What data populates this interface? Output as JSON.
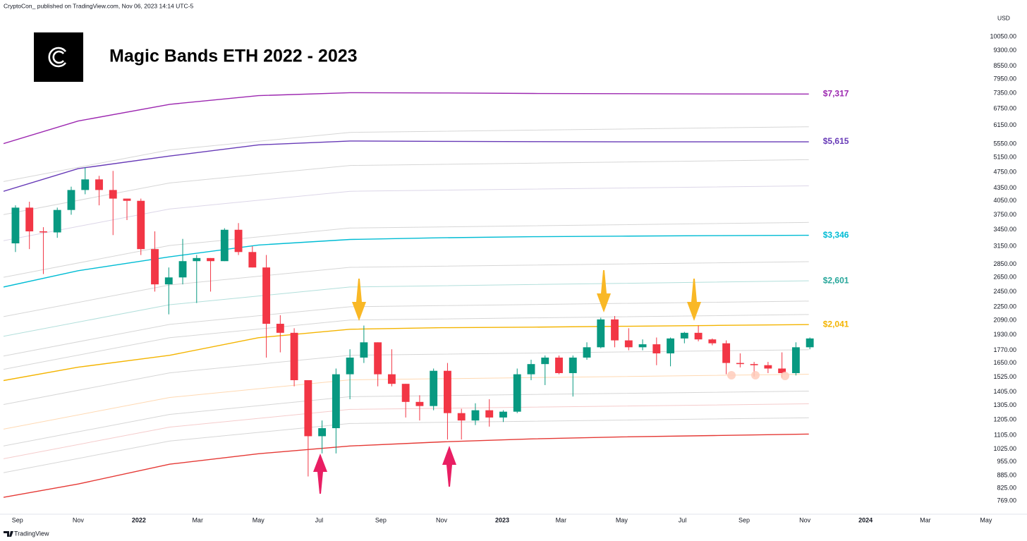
{
  "page": {
    "header": "CryptoCon_ published on TradingView.com, Nov 06, 2023 14:14 UTC-5",
    "footer": "TradingView"
  },
  "chart_data": {
    "type": "candlestick",
    "title": "Magic Bands ETH 2022 - 2023",
    "y_label": "USD",
    "log_scale": true,
    "grid": false,
    "up_color": "#089981",
    "down_color": "#f23645",
    "xlim": [
      "2021-08-18",
      "2024-05-06"
    ],
    "ylim": [
      717,
      11300
    ],
    "xticks": [
      {
        "value": "2021-09-01",
        "label": "Sep"
      },
      {
        "value": "2021-11-01",
        "label": "Nov"
      },
      {
        "value": "2022-01-01",
        "label": "2022"
      },
      {
        "value": "2022-03-01",
        "label": "Mar"
      },
      {
        "value": "2022-05-01",
        "label": "May"
      },
      {
        "value": "2022-07-01",
        "label": "Jul"
      },
      {
        "value": "2022-09-01",
        "label": "Sep"
      },
      {
        "value": "2022-11-01",
        "label": "Nov"
      },
      {
        "value": "2023-01-01",
        "label": "2023"
      },
      {
        "value": "2023-03-01",
        "label": "Mar"
      },
      {
        "value": "2023-05-01",
        "label": "May"
      },
      {
        "value": "2023-07-01",
        "label": "Jul"
      },
      {
        "value": "2023-09-01",
        "label": "Sep"
      },
      {
        "value": "2023-11-01",
        "label": "Nov"
      },
      {
        "value": "2024-01-01",
        "label": "2024"
      },
      {
        "value": "2024-03-01",
        "label": "Mar"
      },
      {
        "value": "2024-05-01",
        "label": "May"
      }
    ],
    "yticks": [
      {
        "value": 769,
        "label": "769.00"
      },
      {
        "value": 825,
        "label": "825.00"
      },
      {
        "value": 885,
        "label": "885.00"
      },
      {
        "value": 955,
        "label": "955.00"
      },
      {
        "value": 1025,
        "label": "1025.00"
      },
      {
        "value": 1105,
        "label": "1105.00"
      },
      {
        "value": 1205,
        "label": "1205.00"
      },
      {
        "value": 1305,
        "label": "1305.00"
      },
      {
        "value": 1405,
        "label": "1405.00"
      },
      {
        "value": 1525,
        "label": "1525.00"
      },
      {
        "value": 1650,
        "label": "1650.00"
      },
      {
        "value": 1770,
        "label": "1770.00"
      },
      {
        "value": 1930,
        "label": "1930.00"
      },
      {
        "value": 2090,
        "label": "2090.00"
      },
      {
        "value": 2250,
        "label": "2250.00"
      },
      {
        "value": 2450,
        "label": "2450.00"
      },
      {
        "value": 2650,
        "label": "2650.00"
      },
      {
        "value": 2850,
        "label": "2850.00"
      },
      {
        "value": 3150,
        "label": "3150.00"
      },
      {
        "value": 3450,
        "label": "3450.00"
      },
      {
        "value": 3750,
        "label": "3750.00"
      },
      {
        "value": 4050,
        "label": "4050.00"
      },
      {
        "value": 4350,
        "label": "4350.00"
      },
      {
        "value": 4750,
        "label": "4750.00"
      },
      {
        "value": 5150,
        "label": "5150.00"
      },
      {
        "value": 5550,
        "label": "5550.00"
      },
      {
        "value": 6150,
        "label": "6150.00"
      },
      {
        "value": 6750,
        "label": "6750.00"
      },
      {
        "value": 7350,
        "label": "7350.00"
      },
      {
        "value": 7950,
        "label": "7950.00"
      },
      {
        "value": 8550,
        "label": "8550.00"
      },
      {
        "value": 9300,
        "label": "9300.00"
      },
      {
        "value": 10050,
        "label": "10050.00"
      }
    ],
    "x": [
      "2021-08-23",
      "2021-09-06",
      "2021-09-20",
      "2021-10-04",
      "2021-10-18",
      "2021-11-01",
      "2021-11-15",
      "2021-11-29",
      "2021-12-13",
      "2021-12-27",
      "2022-01-10",
      "2022-01-24",
      "2022-02-07",
      "2022-02-21",
      "2022-03-07",
      "2022-03-21",
      "2022-04-04",
      "2022-04-18",
      "2022-05-02",
      "2022-05-16",
      "2022-05-30",
      "2022-06-13",
      "2022-06-27",
      "2022-07-11",
      "2022-07-25",
      "2022-08-08",
      "2022-08-22",
      "2022-09-05",
      "2022-09-19",
      "2022-10-03",
      "2022-10-17",
      "2022-10-31",
      "2022-11-14",
      "2022-11-28",
      "2022-12-12",
      "2022-12-26",
      "2023-01-09",
      "2023-01-23",
      "2023-02-06",
      "2023-02-20",
      "2023-03-06",
      "2023-03-20",
      "2023-04-03",
      "2023-04-17",
      "2023-05-01",
      "2023-05-15",
      "2023-05-29",
      "2023-06-12",
      "2023-06-26",
      "2023-07-10",
      "2023-07-24",
      "2023-08-07",
      "2023-08-21",
      "2023-09-04",
      "2023-09-18",
      "2023-10-02",
      "2023-10-16",
      "2023-10-30"
    ],
    "open": [
      3200,
      3900,
      3420,
      3400,
      3850,
      4300,
      4560,
      4300,
      4100,
      4050,
      3100,
      2550,
      2650,
      2900,
      2950,
      2900,
      3450,
      3050,
      2800,
      2050,
      1950,
      1500,
      1100,
      1150,
      1550,
      1700,
      1850,
      1550,
      1470,
      1330,
      1300,
      1580,
      1250,
      1200,
      1270,
      1220,
      1260,
      1550,
      1640,
      1700,
      1560,
      1700,
      1800,
      2100,
      1870,
      1800,
      1830,
      1740,
      1890,
      1950,
      1880,
      1840,
      1650,
      1640,
      1630,
      1600,
      1560,
      1800
    ],
    "high": [
      3950,
      4030,
      3500,
      3900,
      4380,
      4870,
      4650,
      4780,
      4100,
      4100,
      3420,
      2800,
      3280,
      3000,
      2950,
      3480,
      3580,
      3150,
      3000,
      2150,
      2000,
      1500,
      1200,
      1600,
      1780,
      2030,
      1850,
      1780,
      1470,
      1380,
      1600,
      1650,
      1280,
      1320,
      1350,
      1270,
      1600,
      1680,
      1720,
      1720,
      1720,
      1850,
      2120,
      2140,
      2000,
      1880,
      1900,
      1900,
      1960,
      2030,
      1890,
      1870,
      1740,
      1660,
      1660,
      1750,
      1850,
      1900
    ],
    "low": [
      3050,
      3100,
      2700,
      3300,
      3750,
      4200,
      3950,
      3350,
      3640,
      3000,
      2450,
      2160,
      2550,
      2300,
      2450,
      2900,
      3000,
      2800,
      1700,
      1750,
      1450,
      880,
      1000,
      1000,
      1350,
      1650,
      1450,
      1450,
      1220,
      1200,
      1270,
      1080,
      1080,
      1170,
      1160,
      1190,
      1250,
      1500,
      1460,
      1550,
      1370,
      1680,
      1790,
      1800,
      1770,
      1770,
      1630,
      1620,
      1840,
      1860,
      1820,
      1550,
      1610,
      1530,
      1560,
      1520,
      1540,
      1780
    ],
    "close": [
      3900,
      3420,
      3400,
      3850,
      4300,
      4560,
      4300,
      4100,
      4050,
      3100,
      2550,
      2650,
      2900,
      2950,
      2900,
      3450,
      3050,
      2800,
      2050,
      1950,
      1500,
      1100,
      1150,
      1550,
      1700,
      1850,
      1550,
      1470,
      1330,
      1300,
      1580,
      1250,
      1200,
      1270,
      1220,
      1260,
      1550,
      1640,
      1700,
      1560,
      1700,
      1800,
      2100,
      1870,
      1800,
      1830,
      1740,
      1890,
      1950,
      1880,
      1840,
      1650,
      1640,
      1630,
      1600,
      1560,
      1800,
      1890
    ],
    "bands": [
      {
        "color": "#9c27b0",
        "x": [
          "2021-08-18",
          "2021-11-01",
          "2022-02-01",
          "2022-05-01",
          "2022-08-01",
          "2022-11-01",
          "2023-02-01",
          "2023-05-01",
          "2023-08-01",
          "2023-11-05"
        ],
        "values": [
          5560,
          6300,
          6910,
          7250,
          7370,
          7360,
          7340,
          7330,
          7320,
          7317
        ],
        "end_label": "$7,317"
      },
      {
        "color": "#673ab7",
        "x": [
          "2021-08-18",
          "2021-11-01",
          "2022-02-01",
          "2022-05-01",
          "2022-08-01",
          "2022-11-01",
          "2023-02-01",
          "2023-05-01",
          "2023-08-01",
          "2023-11-05"
        ],
        "values": [
          4270,
          4840,
          5190,
          5520,
          5640,
          5630,
          5620,
          5615,
          5615,
          5615
        ],
        "end_label": "$5,615"
      },
      {
        "color": "#00bcd4",
        "x": [
          "2021-08-18",
          "2021-11-01",
          "2022-02-01",
          "2022-05-01",
          "2022-08-01",
          "2022-11-01",
          "2023-02-01",
          "2023-05-01",
          "2023-08-01",
          "2023-11-05"
        ],
        "values": [
          2513,
          2750,
          2970,
          3170,
          3270,
          3300,
          3320,
          3330,
          3340,
          3346
        ],
        "end_label": "$3,346"
      },
      {
        "color": "#f4b400",
        "x": [
          "2021-08-18",
          "2021-11-01",
          "2022-02-01",
          "2022-05-01",
          "2022-08-01",
          "2022-11-01",
          "2023-02-01",
          "2023-05-01",
          "2023-08-01",
          "2023-11-05"
        ],
        "values": [
          1497,
          1612,
          1722,
          1898,
          1989,
          2006,
          2012,
          2022,
          2031,
          2041
        ],
        "end_label": "$2,041"
      },
      {
        "color": "#e53935",
        "x": [
          "2021-08-18",
          "2021-11-01",
          "2022-02-01",
          "2022-05-01",
          "2022-08-01",
          "2022-11-01",
          "2023-02-01",
          "2023-05-01",
          "2023-08-01",
          "2023-11-05"
        ],
        "values": [
          784,
          844,
          942,
          998,
          1042,
          1066,
          1084,
          1096,
          1104,
          1113
        ]
      },
      {
        "color": "#b2dfdb",
        "x": [
          "2021-08-18",
          "2022-02-01",
          "2022-08-01",
          "2023-11-05"
        ],
        "values": [
          1913,
          2278,
          2513,
          2601
        ],
        "end_label": "$2,601",
        "label_color": "#26a69a"
      },
      {
        "color": "#d6d6d6",
        "x": [
          "2021-08-18",
          "2022-02-01",
          "2022-08-01",
          "2023-11-05"
        ],
        "values": [
          4506,
          5370,
          5915,
          6103
        ]
      },
      {
        "color": "#d6d6d6",
        "x": [
          "2021-08-18",
          "2022-02-01",
          "2022-08-01",
          "2023-11-05"
        ],
        "values": [
          3753,
          4470,
          4925,
          5085
        ]
      },
      {
        "color": "#dcd6e8",
        "x": [
          "2021-08-18",
          "2022-02-01",
          "2022-08-01",
          "2023-11-05"
        ],
        "values": [
          3248,
          3870,
          4270,
          4400
        ]
      },
      {
        "color": "#d6d6d6",
        "x": [
          "2021-08-18",
          "2022-02-01",
          "2022-08-01",
          "2023-11-05"
        ],
        "values": [
          2652,
          3163,
          3484,
          3594
        ]
      },
      {
        "color": "#d6d6d6",
        "x": [
          "2021-08-18",
          "2022-02-01",
          "2022-08-01",
          "2023-11-05"
        ],
        "values": [
          2133,
          2542,
          2802,
          2891
        ]
      },
      {
        "color": "#d6d6d6",
        "x": [
          "2021-08-18",
          "2022-02-01",
          "2022-08-01",
          "2023-11-05"
        ],
        "values": [
          1715,
          2043,
          2253,
          2324
        ]
      },
      {
        "color": "#d6d6d6",
        "x": [
          "2021-08-18",
          "2022-02-01",
          "2022-08-01",
          "2023-11-05"
        ],
        "values": [
          1593,
          1898,
          2092,
          2158
        ]
      },
      {
        "color": "#d6d6d6",
        "x": [
          "2021-08-18",
          "2022-02-01",
          "2022-08-01",
          "2023-11-05"
        ],
        "values": [
          1311,
          1562,
          1722,
          1776
        ]
      },
      {
        "color": "#ffd9b3",
        "x": [
          "2021-08-18",
          "2022-02-01",
          "2022-08-01",
          "2023-11-05"
        ],
        "values": [
          1144,
          1363,
          1503,
          1550
        ]
      },
      {
        "color": "#d6d6d6",
        "x": [
          "2021-08-18",
          "2022-02-01",
          "2022-08-01",
          "2023-11-05"
        ],
        "values": [
          1042,
          1241,
          1369,
          1412
        ]
      },
      {
        "color": "#f5cccc",
        "x": [
          "2021-08-18",
          "2022-02-01",
          "2022-08-01",
          "2023-11-05"
        ],
        "values": [
          971,
          1157,
          1276,
          1316
        ]
      },
      {
        "color": "#d6d6d6",
        "x": [
          "2021-08-18",
          "2022-02-01",
          "2022-08-01",
          "2023-11-05"
        ],
        "values": [
          899,
          1071,
          1180,
          1218
        ]
      }
    ]
  }
}
